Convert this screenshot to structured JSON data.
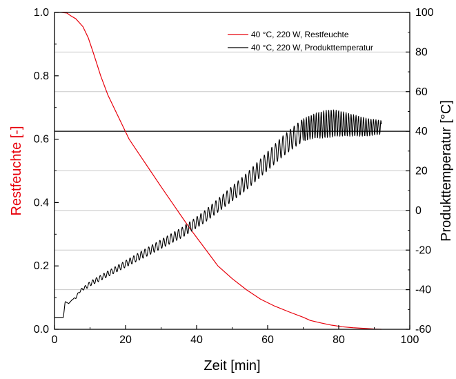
{
  "chart_data": {
    "type": "line",
    "xlabel": "Zeit [min]",
    "ylabel_left": "Restfeuchte [-]",
    "ylabel_right": "Produkttemperatur [°C]",
    "xlim": [
      0,
      100
    ],
    "ylim_left": [
      0.0,
      1.0
    ],
    "ylim_right": [
      -60,
      100
    ],
    "x_ticks": [
      "0",
      "20",
      "40",
      "60",
      "80",
      "100"
    ],
    "y_left_ticks": [
      "0.0",
      "0.2",
      "0.4",
      "0.6",
      "0.8",
      "1.0"
    ],
    "y_right_ticks": [
      "-60",
      "-40",
      "-20",
      "0",
      "20",
      "40",
      "60",
      "80",
      "100"
    ],
    "grid": "horizontal gridlines at right-axis major ticks",
    "legend_position": "top-right",
    "reference_line": {
      "axis": "right",
      "value": 40
    },
    "series": [
      {
        "name": "40 °C, 220 W, Restfeuchte",
        "axis": "left",
        "color": "#e8000b",
        "x": [
          2.0,
          3.5,
          4.5,
          6.0,
          8.0,
          9.5,
          11.0,
          13.0,
          15.0,
          18.0,
          21.0,
          24.0,
          27.0,
          30.0,
          34.0,
          38.0,
          42.0,
          46.0,
          50.0,
          54.0,
          58.0,
          62.0,
          66.0,
          70.0,
          72.0,
          75.0,
          78.0,
          81.0,
          84.0,
          87.0,
          90.0,
          92.0
        ],
        "y": [
          1.0,
          0.998,
          0.99,
          0.98,
          0.955,
          0.92,
          0.87,
          0.8,
          0.74,
          0.67,
          0.6,
          0.55,
          0.5,
          0.45,
          0.385,
          0.32,
          0.26,
          0.2,
          0.16,
          0.125,
          0.095,
          0.073,
          0.055,
          0.038,
          0.028,
          0.02,
          0.013,
          0.008,
          0.005,
          0.003,
          0.001,
          0.0
        ]
      },
      {
        "name": "40 °C, 220 W, Produkttemperatur",
        "axis": "right",
        "color": "#000000",
        "x": [
          0.0,
          2.5,
          3.0,
          4.0,
          5.0,
          6.0,
          7.0,
          8.0,
          9.0,
          10.0,
          12.0,
          14.0,
          16.0,
          18.0,
          20.0,
          22.0,
          24.0,
          26.0,
          28.0,
          30.0,
          32.0,
          34.0,
          36.0,
          38.0,
          40.0,
          42.0,
          44.0,
          46.0,
          48.0,
          50.0,
          52.0,
          54.0,
          56.0,
          58.0,
          60.0,
          62.0,
          64.0,
          66.0,
          68.0,
          70.0,
          72.0,
          74.0,
          76.0,
          78.0,
          80.0,
          82.0,
          84.0,
          86.0,
          88.0,
          90.0,
          92.0
        ],
        "y": [
          -54.0,
          -54.0,
          -46.0,
          -47.0,
          -45.0,
          -44.0,
          -41.0,
          -39.5,
          -38.5,
          -37.0,
          -35.0,
          -33.0,
          -31.0,
          -29.0,
          -27.0,
          -25.0,
          -23.0,
          -21.0,
          -19.0,
          -17.0,
          -15.0,
          -13.0,
          -11.0,
          -8.5,
          -6.0,
          -3.5,
          -0.5,
          2.5,
          5.5,
          8.5,
          11.5,
          14.5,
          18.0,
          21.5,
          25.0,
          28.5,
          32.0,
          35.0,
          38.0,
          40.5,
          42.0,
          43.0,
          43.5,
          44.0,
          44.0,
          43.5,
          43.0,
          42.5,
          42.0,
          42.0,
          42.0
        ],
        "amplitude": [
          0.0,
          0.0,
          0.0,
          0.0,
          0.0,
          0.5,
          0.6,
          0.8,
          1.0,
          1.2,
          1.3,
          1.4,
          1.5,
          1.6,
          1.7,
          1.8,
          2.0,
          2.1,
          2.2,
          2.3,
          2.4,
          2.5,
          2.6,
          2.7,
          2.8,
          3.0,
          3.2,
          3.4,
          3.6,
          3.8,
          4.0,
          4.2,
          4.4,
          4.6,
          4.8,
          5.0,
          5.2,
          5.4,
          5.6,
          5.8,
          6.0,
          6.5,
          7.0,
          7.0,
          6.5,
          6.0,
          5.5,
          5.0,
          4.5,
          4.0,
          3.5
        ]
      }
    ]
  }
}
